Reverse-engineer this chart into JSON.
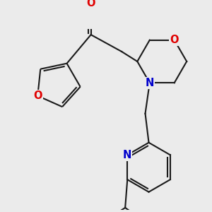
{
  "background_color": "#ebebeb",
  "bond_color": "#1a1a1a",
  "bond_width": 1.5,
  "dbo": 0.055,
  "atom_colors": {
    "O": "#e00000",
    "N": "#0000cc"
  },
  "font_size": 10.5
}
